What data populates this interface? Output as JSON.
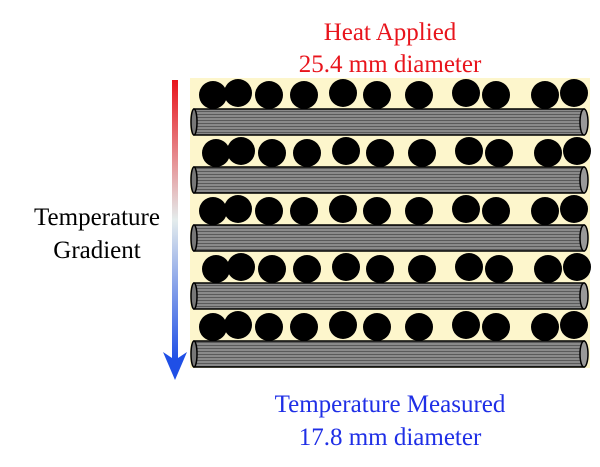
{
  "header": {
    "title": "Heat Applied",
    "subtitle": "25.4 mm diameter"
  },
  "side_label": {
    "line1": "Temperature",
    "line2": "Gradient"
  },
  "footer": {
    "title": "Temperature Measured",
    "subtitle": "17.8 mm diameter"
  }
}
